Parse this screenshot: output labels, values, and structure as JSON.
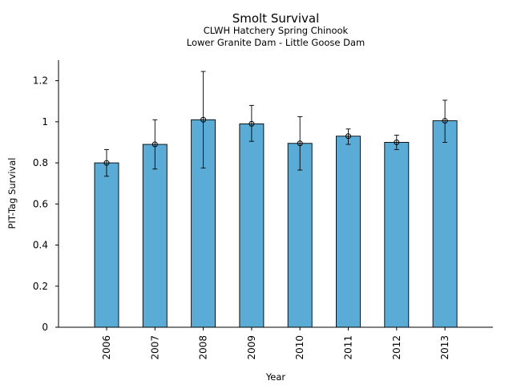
{
  "chart_data": {
    "type": "bar",
    "title": "Smolt Survival",
    "subtitle_lines": [
      "CLWH Hatchery Spring Chinook",
      "Lower Granite Dam - Little Goose Dam"
    ],
    "xlabel": "Year",
    "ylabel": "PIT-Tag Survival",
    "categories": [
      "2006",
      "2007",
      "2008",
      "2009",
      "2010",
      "2011",
      "2012",
      "2013"
    ],
    "values": [
      0.8,
      0.89,
      1.01,
      0.99,
      0.895,
      0.93,
      0.9,
      1.005
    ],
    "error_low": [
      0.735,
      0.77,
      0.775,
      0.905,
      0.765,
      0.89,
      0.865,
      0.9
    ],
    "error_high": [
      0.865,
      1.01,
      1.245,
      1.08,
      1.025,
      0.965,
      0.935,
      1.105
    ],
    "ylim": [
      0,
      1.3
    ],
    "yticks": [
      0,
      0.2,
      0.4,
      0.6,
      0.8,
      1,
      1.2
    ],
    "ytick_labels": [
      "0",
      "0.2",
      "0.4",
      "0.6",
      "0.8",
      "1",
      "1.2"
    ],
    "grid": false,
    "bar_color": "#5aabd5",
    "edge_color": "#000000"
  }
}
